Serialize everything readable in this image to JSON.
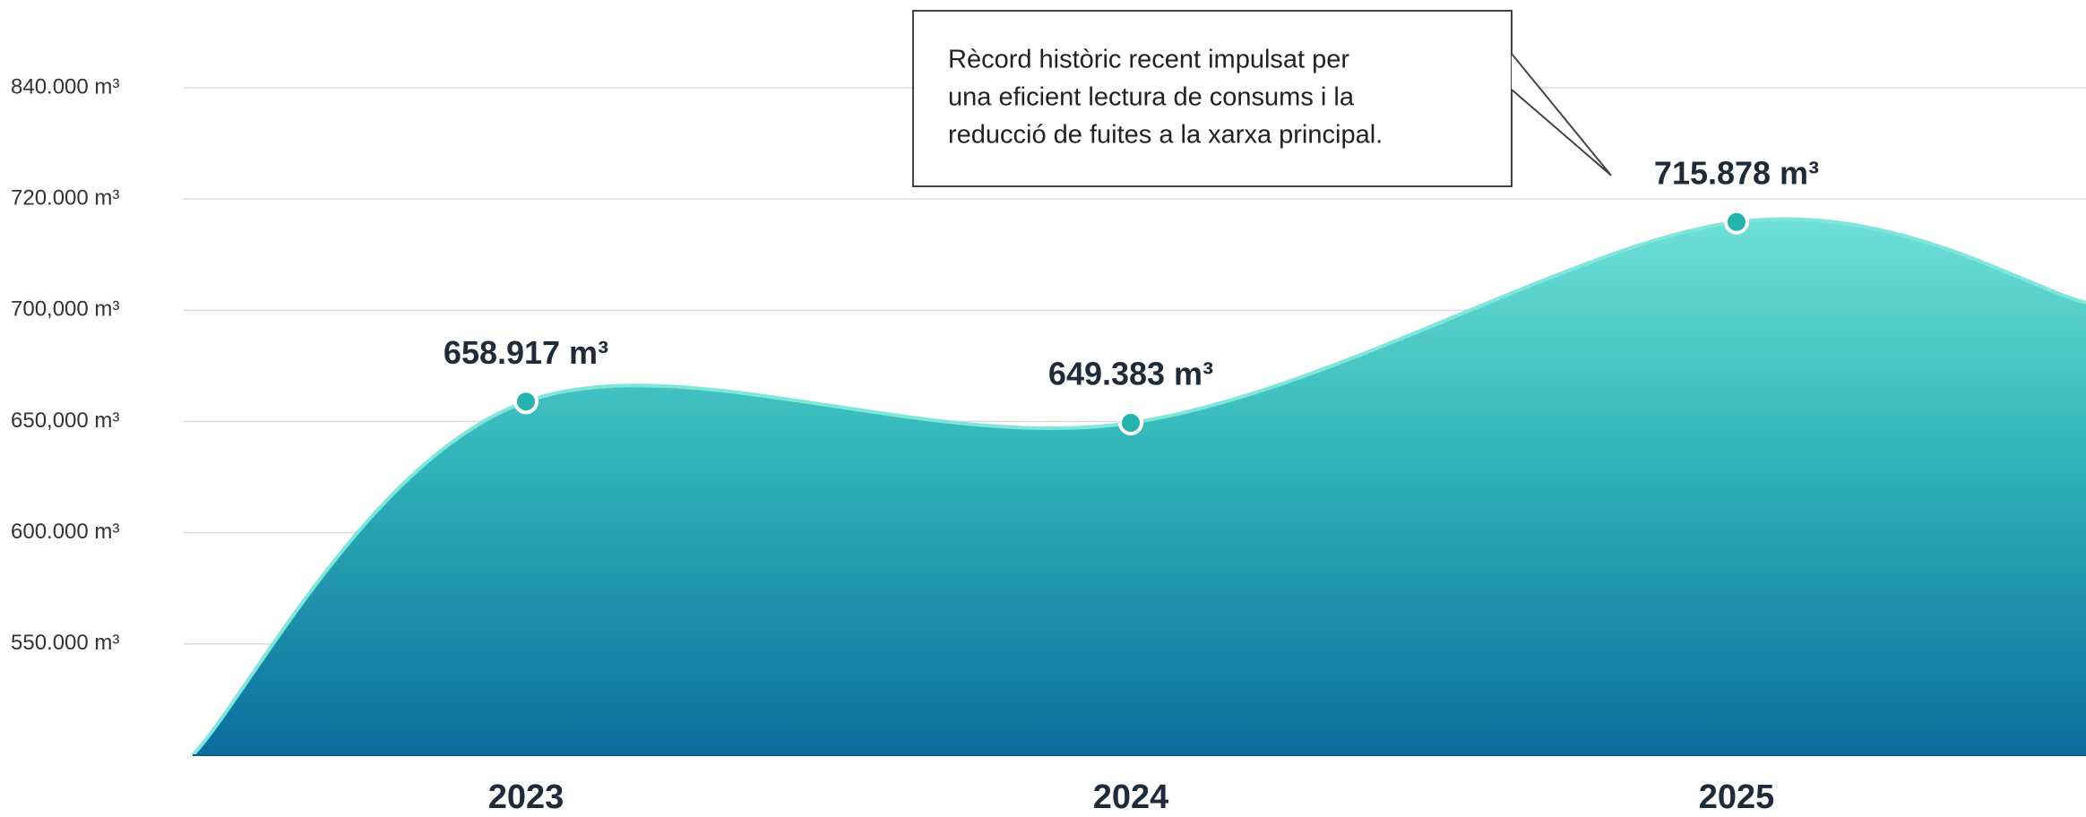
{
  "chart_data": {
    "type": "area",
    "categories": [
      "2023",
      "2024",
      "2025"
    ],
    "values": [
      658917,
      649383,
      715878
    ],
    "value_labels": [
      "658.917 m³",
      "649.383 m³",
      "715.878 m³"
    ],
    "color": "#2fb8b8",
    "ylim": [
      500000,
      840000
    ],
    "yticks": [
      {
        "value": 550000,
        "label": "550.000 m³"
      },
      {
        "value": 600000,
        "label": "600.000 m³"
      },
      {
        "value": 650000,
        "label": "650,000 m³"
      },
      {
        "value": 700000,
        "label": "700,000 m³"
      },
      {
        "value": 720000,
        "label": "720.000 m³"
      },
      {
        "value": 840000,
        "label": "840.000 m³"
      }
    ],
    "grid": true,
    "annotation": [
      "Rècord històric recent impulsat per",
      "una eficient lectura de consums i la",
      "reducció de fuites a la xarxa principal."
    ]
  }
}
